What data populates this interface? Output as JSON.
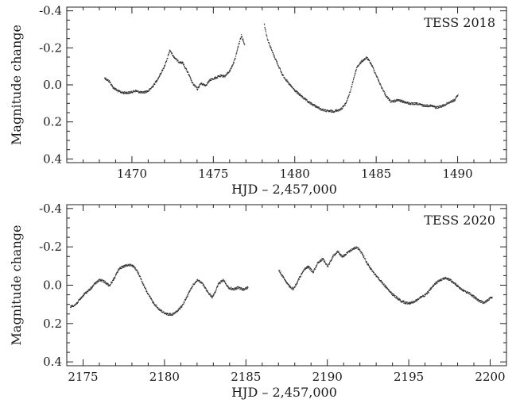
{
  "chart_data": [
    {
      "type": "scatter",
      "title": "TESS 2018",
      "xlabel": "HJD – 2,457,000",
      "ylabel": "Magnitude change",
      "xlim": [
        1466,
        1493
      ],
      "ylim": [
        0.42,
        -0.42
      ],
      "y_inverted": true,
      "x_ticks": [
        1470,
        1475,
        1480,
        1485,
        1490
      ],
      "x_tick_labels": [
        "1470",
        "1475",
        "1480",
        "1485",
        "1490"
      ],
      "y_ticks": [
        -0.4,
        -0.2,
        0.0,
        0.2,
        0.4
      ],
      "y_tick_labels": [
        "-0.4",
        "-0.2",
        "0.0",
        "0.2",
        "0.4"
      ],
      "legend": "top-right",
      "grid": false,
      "series": [
        {
          "segments": [
            [
              [
                1468.3,
                -0.04
              ],
              [
                1468.6,
                -0.02
              ],
              [
                1468.8,
                0.01
              ],
              [
                1469.1,
                0.03
              ],
              [
                1469.4,
                0.04
              ],
              [
                1469.8,
                0.04
              ],
              [
                1470.2,
                0.03
              ],
              [
                1470.6,
                0.04
              ],
              [
                1471.0,
                0.03
              ],
              [
                1471.3,
                0.0
              ],
              [
                1471.6,
                -0.04
              ],
              [
                1471.9,
                -0.09
              ],
              [
                1472.1,
                -0.13
              ],
              [
                1472.3,
                -0.19
              ],
              [
                1472.5,
                -0.16
              ],
              [
                1472.8,
                -0.13
              ],
              [
                1473.1,
                -0.12
              ],
              [
                1473.4,
                -0.07
              ],
              [
                1473.7,
                -0.01
              ],
              [
                1474.0,
                0.02
              ],
              [
                1474.2,
                -0.01
              ],
              [
                1474.5,
                0.0
              ],
              [
                1474.8,
                -0.03
              ],
              [
                1475.1,
                -0.04
              ],
              [
                1475.4,
                -0.05
              ],
              [
                1475.7,
                -0.05
              ],
              [
                1476.0,
                -0.08
              ],
              [
                1476.3,
                -0.14
              ],
              [
                1476.5,
                -0.21
              ],
              [
                1476.7,
                -0.27
              ],
              [
                1476.9,
                -0.22
              ]
            ],
            [
              [
                1478.1,
                -0.33
              ],
              [
                1478.3,
                -0.25
              ],
              [
                1478.6,
                -0.18
              ],
              [
                1478.9,
                -0.12
              ],
              [
                1479.2,
                -0.06
              ],
              [
                1479.6,
                -0.01
              ],
              [
                1480.0,
                0.03
              ],
              [
                1480.4,
                0.06
              ],
              [
                1480.8,
                0.09
              ],
              [
                1481.2,
                0.11
              ],
              [
                1481.6,
                0.13
              ],
              [
                1482.0,
                0.14
              ],
              [
                1482.4,
                0.14
              ],
              [
                1482.8,
                0.13
              ],
              [
                1483.1,
                0.1
              ],
              [
                1483.4,
                0.03
              ],
              [
                1483.6,
                -0.04
              ],
              [
                1483.8,
                -0.1
              ],
              [
                1484.1,
                -0.13
              ],
              [
                1484.4,
                -0.15
              ],
              [
                1484.7,
                -0.11
              ],
              [
                1485.0,
                -0.05
              ],
              [
                1485.3,
                0.01
              ],
              [
                1485.6,
                0.06
              ],
              [
                1485.9,
                0.09
              ],
              [
                1486.3,
                0.08
              ],
              [
                1486.7,
                0.09
              ],
              [
                1487.1,
                0.1
              ],
              [
                1487.5,
                0.1
              ],
              [
                1487.9,
                0.11
              ],
              [
                1488.3,
                0.11
              ],
              [
                1488.7,
                0.12
              ],
              [
                1489.1,
                0.11
              ],
              [
                1489.5,
                0.09
              ],
              [
                1489.8,
                0.08
              ],
              [
                1490.0,
                0.05
              ]
            ]
          ]
        }
      ]
    },
    {
      "type": "scatter",
      "title": "TESS 2020",
      "xlabel": "HJD – 2,457,000",
      "ylabel": "Magnitude change",
      "xlim": [
        2174,
        2201
      ],
      "ylim": [
        0.42,
        -0.42
      ],
      "y_inverted": true,
      "x_ticks": [
        2175,
        2180,
        2185,
        2190,
        2195,
        2200
      ],
      "x_tick_labels": [
        "2175",
        "2180",
        "2185",
        "2190",
        "2195",
        "2200"
      ],
      "y_ticks": [
        -0.4,
        -0.2,
        0.0,
        0.2,
        0.4
      ],
      "y_tick_labels": [
        "-0.4",
        "-0.2",
        "0.0",
        "0.2",
        "0.4"
      ],
      "legend": "top-right",
      "grid": false,
      "series": [
        {
          "segments": [
            [
              [
                2174.2,
                0.11
              ],
              [
                2174.5,
                0.1
              ],
              [
                2174.8,
                0.07
              ],
              [
                2175.1,
                0.04
              ],
              [
                2175.4,
                0.02
              ],
              [
                2175.7,
                -0.01
              ],
              [
                2176.0,
                -0.03
              ],
              [
                2176.3,
                -0.02
              ],
              [
                2176.6,
                0.0
              ],
              [
                2176.9,
                -0.04
              ],
              [
                2177.2,
                -0.09
              ],
              [
                2177.5,
                -0.1
              ],
              [
                2177.8,
                -0.11
              ],
              [
                2178.1,
                -0.1
              ],
              [
                2178.4,
                -0.06
              ],
              [
                2178.7,
                0.0
              ],
              [
                2179.0,
                0.05
              ],
              [
                2179.3,
                0.09
              ],
              [
                2179.6,
                0.12
              ],
              [
                2179.9,
                0.14
              ],
              [
                2180.2,
                0.15
              ],
              [
                2180.5,
                0.15
              ],
              [
                2180.8,
                0.13
              ],
              [
                2181.1,
                0.1
              ],
              [
                2181.4,
                0.05
              ],
              [
                2181.7,
                0.0
              ],
              [
                2182.0,
                -0.03
              ],
              [
                2182.3,
                -0.01
              ],
              [
                2182.6,
                0.03
              ],
              [
                2182.9,
                0.06
              ],
              [
                2183.1,
                0.03
              ],
              [
                2183.3,
                -0.01
              ],
              [
                2183.6,
                -0.03
              ],
              [
                2183.9,
                0.01
              ],
              [
                2184.2,
                0.02
              ],
              [
                2184.5,
                0.01
              ],
              [
                2184.8,
                0.02
              ],
              [
                2185.1,
                0.01
              ]
            ],
            [
              [
                2187.0,
                -0.08
              ],
              [
                2187.3,
                -0.04
              ],
              [
                2187.6,
                0.0
              ],
              [
                2187.9,
                0.02
              ],
              [
                2188.2,
                -0.03
              ],
              [
                2188.5,
                -0.08
              ],
              [
                2188.8,
                -0.1
              ],
              [
                2189.1,
                -0.07
              ],
              [
                2189.4,
                -0.12
              ],
              [
                2189.7,
                -0.14
              ],
              [
                2190.0,
                -0.1
              ],
              [
                2190.3,
                -0.15
              ],
              [
                2190.6,
                -0.18
              ],
              [
                2190.9,
                -0.15
              ],
              [
                2191.2,
                -0.17
              ],
              [
                2191.5,
                -0.19
              ],
              [
                2191.8,
                -0.2
              ],
              [
                2192.1,
                -0.17
              ],
              [
                2192.4,
                -0.12
              ],
              [
                2192.7,
                -0.08
              ],
              [
                2193.0,
                -0.05
              ],
              [
                2193.3,
                -0.02
              ],
              [
                2193.6,
                0.01
              ],
              [
                2193.9,
                0.04
              ],
              [
                2194.2,
                0.06
              ],
              [
                2194.5,
                0.08
              ],
              [
                2194.8,
                0.09
              ],
              [
                2195.1,
                0.09
              ],
              [
                2195.4,
                0.08
              ],
              [
                2195.7,
                0.06
              ],
              [
                2196.0,
                0.05
              ],
              [
                2196.3,
                0.02
              ],
              [
                2196.6,
                -0.01
              ],
              [
                2196.9,
                -0.03
              ],
              [
                2197.2,
                -0.04
              ],
              [
                2197.5,
                -0.03
              ],
              [
                2197.8,
                -0.01
              ],
              [
                2198.1,
                0.01
              ],
              [
                2198.4,
                0.03
              ],
              [
                2198.7,
                0.04
              ],
              [
                2199.0,
                0.06
              ],
              [
                2199.3,
                0.08
              ],
              [
                2199.6,
                0.09
              ],
              [
                2199.9,
                0.07
              ],
              [
                2200.1,
                0.06
              ]
            ]
          ]
        }
      ]
    }
  ]
}
